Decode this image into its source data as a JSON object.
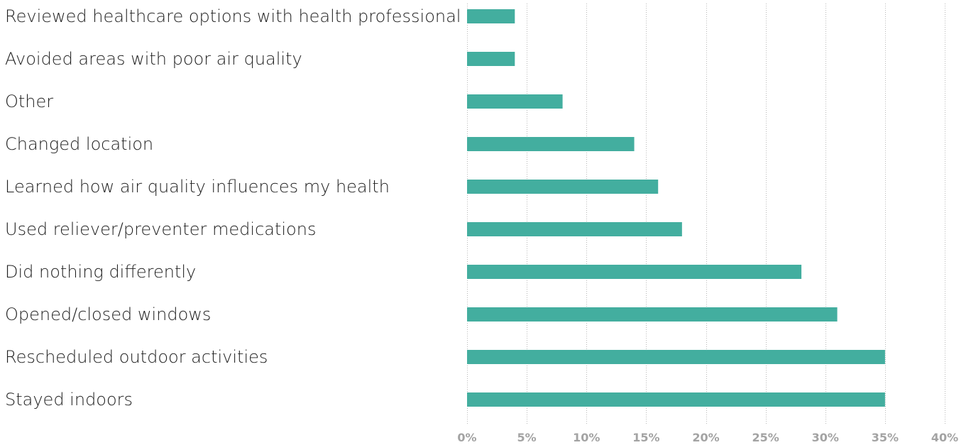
{
  "chart_data": {
    "type": "bar",
    "orientation": "horizontal",
    "categories": [
      "Reviewed healthcare options with health professional",
      "Avoided areas with poor air quality",
      "Other",
      "Changed location",
      "Learned how air quality influences my health",
      "Used reliever/preventer medications",
      "Did nothing differently",
      "Opened/closed windows",
      "Rescheduled outdoor activities",
      "Stayed indoors"
    ],
    "values": [
      4,
      4,
      8,
      14,
      16,
      18,
      28,
      31,
      35,
      35
    ],
    "value_unit": "%",
    "xlim": [
      0,
      40
    ],
    "x_ticks": [
      0,
      5,
      10,
      15,
      20,
      25,
      30,
      35,
      40
    ],
    "x_tick_labels": [
      "0%",
      "5%",
      "10%",
      "15%",
      "20%",
      "25%",
      "30%",
      "35%",
      "40%"
    ],
    "title": "",
    "xlabel": "",
    "ylabel": "",
    "grid": "vertical dotted",
    "legend": "none",
    "bar_color": "#43ae9f",
    "tick_label_color": "#a3a3a3",
    "label_color": "#1f1f1f"
  }
}
